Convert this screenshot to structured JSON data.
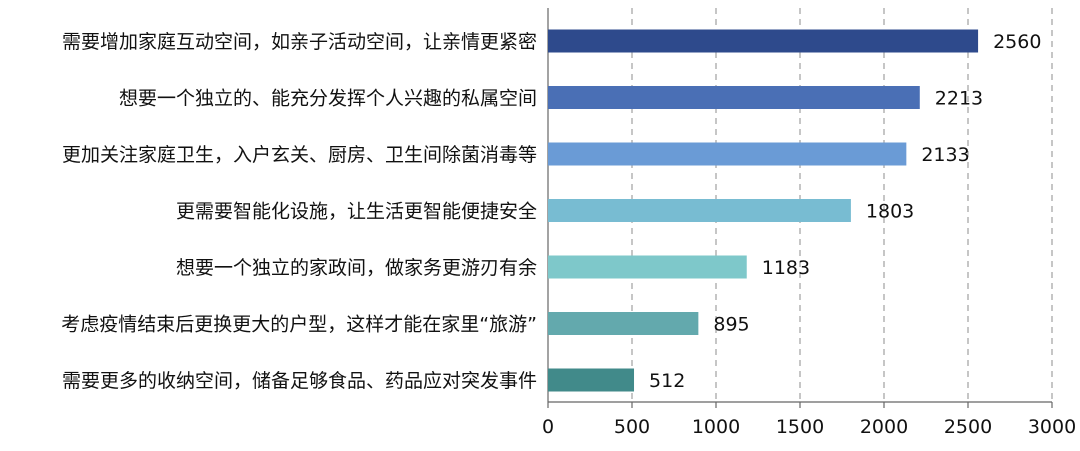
{
  "chart_data": {
    "type": "bar",
    "orientation": "horizontal",
    "categories": [
      "需要增加家庭互动空间，如亲子活动空间，让亲情更紧密",
      "想要一个独立的、能充分发挥个人兴趣的私属空间",
      "更加关注家庭卫生，入户玄关、厨房、卫生间除菌消毒等",
      "更需要智能化设施，让生活更智能便捷安全",
      "想要一个独立的家政间，做家务更游刃有余",
      "考虑疫情结束后更换更大的户型，这样才能在家里“旅游”",
      "需要更多的收纳空间，储备足够食品、药品应对突发事件"
    ],
    "values": [
      2560,
      2213,
      2133,
      1803,
      1183,
      895,
      512
    ],
    "value_labels": [
      "2560",
      "2213",
      "2133",
      "1803",
      "1183",
      "895",
      "512"
    ],
    "bar_colors": [
      "#2e4a8c",
      "#4a6fb5",
      "#6a9bd6",
      "#78bcd2",
      "#7ec8ca",
      "#63a9ad",
      "#418a8a"
    ],
    "x_ticks": [
      "0",
      "500",
      "1000",
      "1500",
      "2000",
      "2500",
      "3000"
    ],
    "xlim": [
      0,
      3000
    ],
    "grid": "vertical dashed",
    "legend": "none",
    "title": "",
    "xlabel": "",
    "ylabel": ""
  }
}
